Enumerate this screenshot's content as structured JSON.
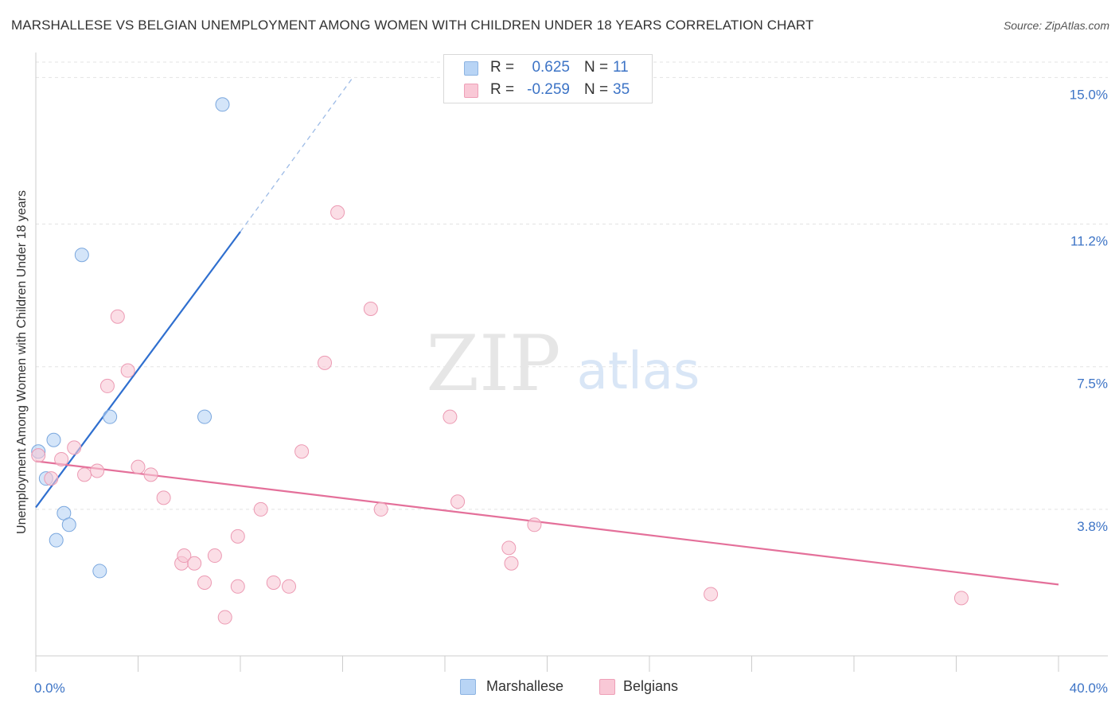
{
  "header": {
    "title": "MARSHALLESE VS BELGIAN UNEMPLOYMENT AMONG WOMEN WITH CHILDREN UNDER 18 YEARS CORRELATION CHART",
    "source": "Source: ZipAtlas.com"
  },
  "watermark": {
    "zip": "ZIP",
    "atlas": "atlas"
  },
  "legend_top": {
    "rows": [
      {
        "r_label": "R =",
        "r_value": "0.625",
        "n_label": "N =",
        "n_value": "11"
      },
      {
        "r_label": "R =",
        "r_value": "-0.259",
        "n_label": "N =",
        "n_value": "35"
      }
    ]
  },
  "legend_bottom": {
    "series1": "Marshallese",
    "series2": "Belgians"
  },
  "colors": {
    "blue_fill": "#b8d4f5",
    "blue_stroke": "#7aa7de",
    "blue_line": "#2f6fcf",
    "pink_fill": "#f9c8d6",
    "pink_stroke": "#ec9ab3",
    "pink_line": "#e4709a",
    "axis_label": "#3d74c6",
    "grid": "#e3e3e3"
  },
  "chart_data": {
    "type": "scatter",
    "title": "MARSHALLESE VS BELGIAN UNEMPLOYMENT AMONG WOMEN WITH CHILDREN UNDER 18 YEARS CORRELATION CHART",
    "xlabel": "",
    "ylabel": "Unemployment Among Women with Children Under 18 years",
    "xlim": [
      0,
      40
    ],
    "ylim": [
      0,
      15.4
    ],
    "x_tick_labels": [
      {
        "value": 0,
        "label": "0.0%"
      },
      {
        "value": 40,
        "label": "40.0%"
      }
    ],
    "y_tick_labels": [
      {
        "value": 3.8,
        "label": "3.8%"
      },
      {
        "value": 7.5,
        "label": "7.5%"
      },
      {
        "value": 11.2,
        "label": "11.2%"
      },
      {
        "value": 15.0,
        "label": "15.0%"
      }
    ],
    "series": [
      {
        "name": "Marshallese",
        "r": 0.625,
        "n": 11,
        "points": [
          {
            "x": 0.1,
            "y": 5.3
          },
          {
            "x": 0.4,
            "y": 4.6
          },
          {
            "x": 0.7,
            "y": 5.6
          },
          {
            "x": 0.8,
            "y": 3.0
          },
          {
            "x": 1.1,
            "y": 3.7
          },
          {
            "x": 1.3,
            "y": 3.4
          },
          {
            "x": 1.8,
            "y": 10.4
          },
          {
            "x": 2.5,
            "y": 2.2
          },
          {
            "x": 2.9,
            "y": 6.2
          },
          {
            "x": 6.6,
            "y": 6.2
          },
          {
            "x": 7.3,
            "y": 14.3
          }
        ],
        "trend": {
          "x0": 0,
          "y0": 3.85,
          "x1": 8.0,
          "y1": 11.0,
          "dashed_to_x": 12.4,
          "dashed_to_y": 15.0
        }
      },
      {
        "name": "Belgians",
        "r": -0.259,
        "n": 35,
        "points": [
          {
            "x": 0.1,
            "y": 5.2
          },
          {
            "x": 0.6,
            "y": 4.6
          },
          {
            "x": 1.0,
            "y": 5.1
          },
          {
            "x": 1.5,
            "y": 5.4
          },
          {
            "x": 1.9,
            "y": 4.7
          },
          {
            "x": 2.4,
            "y": 4.8
          },
          {
            "x": 2.8,
            "y": 7.0
          },
          {
            "x": 3.2,
            "y": 8.8
          },
          {
            "x": 3.6,
            "y": 7.4
          },
          {
            "x": 4.0,
            "y": 4.9
          },
          {
            "x": 4.5,
            "y": 4.7
          },
          {
            "x": 5.0,
            "y": 4.1
          },
          {
            "x": 5.7,
            "y": 2.4
          },
          {
            "x": 5.8,
            "y": 2.6
          },
          {
            "x": 6.2,
            "y": 2.4
          },
          {
            "x": 6.6,
            "y": 1.9
          },
          {
            "x": 7.0,
            "y": 2.6
          },
          {
            "x": 7.4,
            "y": 1.0
          },
          {
            "x": 7.9,
            "y": 3.1
          },
          {
            "x": 7.9,
            "y": 1.8
          },
          {
            "x": 8.8,
            "y": 3.8
          },
          {
            "x": 9.3,
            "y": 1.9
          },
          {
            "x": 9.9,
            "y": 1.8
          },
          {
            "x": 10.4,
            "y": 5.3
          },
          {
            "x": 11.3,
            "y": 7.6
          },
          {
            "x": 11.8,
            "y": 11.5
          },
          {
            "x": 13.1,
            "y": 9.0
          },
          {
            "x": 13.5,
            "y": 3.8
          },
          {
            "x": 16.2,
            "y": 6.2
          },
          {
            "x": 16.5,
            "y": 4.0
          },
          {
            "x": 18.5,
            "y": 2.8
          },
          {
            "x": 18.6,
            "y": 2.4
          },
          {
            "x": 19.5,
            "y": 3.4
          },
          {
            "x": 26.4,
            "y": 1.6
          },
          {
            "x": 36.2,
            "y": 1.5
          }
        ],
        "trend": {
          "x0": 0,
          "y0": 5.05,
          "x1": 40,
          "y1": 1.85
        }
      }
    ],
    "legend_position": "top-center",
    "grid": true
  }
}
